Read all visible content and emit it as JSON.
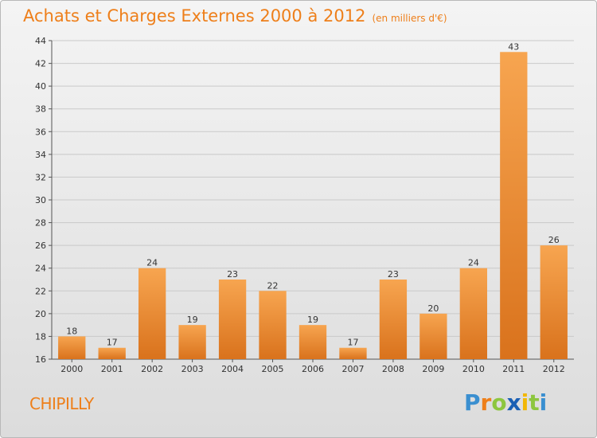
{
  "header": {
    "title": "Achats et Charges Externes 2000 à 2012",
    "subtitle": "(en milliers d'€)"
  },
  "footer": {
    "commune": "CHIPILLY",
    "brand": {
      "letters": [
        {
          "ch": "P",
          "color": "#3a8fd0"
        },
        {
          "ch": "r",
          "color": "#ee7f1a"
        },
        {
          "ch": "o",
          "color": "#8dc63f"
        },
        {
          "ch": "x",
          "color": "#1a5fb4"
        },
        {
          "ch": "i",
          "color": "#f2b705"
        },
        {
          "ch": "t",
          "color": "#8dc63f"
        },
        {
          "ch": "i",
          "color": "#3a8fd0"
        }
      ]
    }
  },
  "chart_data": {
    "type": "bar",
    "title": "Achats et Charges Externes 2000 à 2012",
    "subtitle": "(en milliers d'€)",
    "categories": [
      "2000",
      "2001",
      "2002",
      "2003",
      "2004",
      "2005",
      "2006",
      "2007",
      "2008",
      "2009",
      "2010",
      "2011",
      "2012"
    ],
    "values": [
      18,
      17,
      24,
      19,
      23,
      22,
      19,
      17,
      23,
      20,
      24,
      43,
      26
    ],
    "ylim": [
      16,
      44
    ],
    "yticks": [
      16,
      18,
      20,
      22,
      24,
      26,
      28,
      30,
      32,
      34,
      36,
      38,
      40,
      42,
      44
    ],
    "grid": true,
    "bar_color_top": "#f7a550",
    "bar_color_bottom": "#d9721c",
    "legend": "none"
  }
}
